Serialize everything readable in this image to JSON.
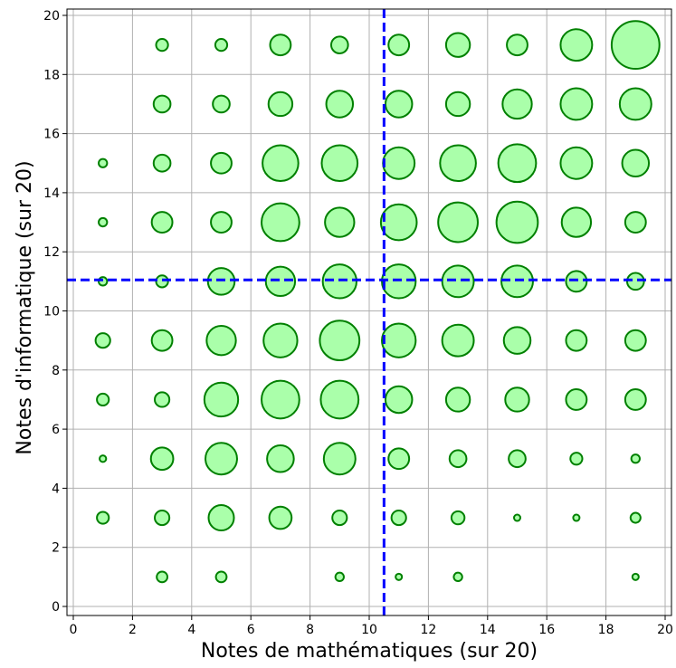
{
  "chart_data": {
    "type": "scatter",
    "variant": "bubble",
    "title": "",
    "xlabel": "Notes de mathématiques (sur 20)",
    "ylabel": "Notes d'informatique (sur 20)",
    "xlim": [
      0,
      20
    ],
    "ylim": [
      0,
      20
    ],
    "xticks": [
      "0",
      "2",
      "4",
      "6",
      "8",
      "10",
      "12",
      "14",
      "16",
      "18",
      "20"
    ],
    "yticks": [
      "0",
      "2",
      "4",
      "6",
      "8",
      "10",
      "12",
      "14",
      "16",
      "18",
      "20"
    ],
    "grid": true,
    "colors": {
      "bubble_fill": "#aaffaa",
      "bubble_edge": "#008000",
      "mean_line": "#0000ff",
      "grid": "#b0b0b0"
    },
    "mean_lines": {
      "x": 10.5,
      "y": 11.05,
      "style": "dashed"
    },
    "points": [
      {
        "x": 3,
        "y": 19,
        "count": 1
      },
      {
        "x": 5,
        "y": 19,
        "count": 1
      },
      {
        "x": 7,
        "y": 19,
        "count": 3
      },
      {
        "x": 9,
        "y": 19,
        "count": 2
      },
      {
        "x": 11,
        "y": 19,
        "count": 3
      },
      {
        "x": 13,
        "y": 19,
        "count": 4
      },
      {
        "x": 15,
        "y": 19,
        "count": 3
      },
      {
        "x": 17,
        "y": 19,
        "count": 7
      },
      {
        "x": 19,
        "y": 19,
        "count": 16
      },
      {
        "x": 3,
        "y": 17,
        "count": 2
      },
      {
        "x": 5,
        "y": 17,
        "count": 2
      },
      {
        "x": 7,
        "y": 17,
        "count": 4
      },
      {
        "x": 9,
        "y": 17,
        "count": 5
      },
      {
        "x": 11,
        "y": 17,
        "count": 5
      },
      {
        "x": 13,
        "y": 17,
        "count": 4
      },
      {
        "x": 15,
        "y": 17,
        "count": 6
      },
      {
        "x": 17,
        "y": 17,
        "count": 7
      },
      {
        "x": 19,
        "y": 17,
        "count": 7
      },
      {
        "x": 1,
        "y": 15,
        "count": 0.5
      },
      {
        "x": 3,
        "y": 15,
        "count": 2
      },
      {
        "x": 5,
        "y": 15,
        "count": 3
      },
      {
        "x": 7,
        "y": 15,
        "count": 9
      },
      {
        "x": 9,
        "y": 15,
        "count": 9
      },
      {
        "x": 11,
        "y": 15,
        "count": 7
      },
      {
        "x": 13,
        "y": 15,
        "count": 9
      },
      {
        "x": 15,
        "y": 15,
        "count": 10
      },
      {
        "x": 17,
        "y": 15,
        "count": 7
      },
      {
        "x": 19,
        "y": 15,
        "count": 5
      },
      {
        "x": 1,
        "y": 13,
        "count": 0.5
      },
      {
        "x": 3,
        "y": 13,
        "count": 3
      },
      {
        "x": 5,
        "y": 13,
        "count": 3
      },
      {
        "x": 7,
        "y": 13,
        "count": 10
      },
      {
        "x": 9,
        "y": 13,
        "count": 6
      },
      {
        "x": 11,
        "y": 13,
        "count": 9
      },
      {
        "x": 13,
        "y": 13,
        "count": 11
      },
      {
        "x": 15,
        "y": 13,
        "count": 12
      },
      {
        "x": 17,
        "y": 13,
        "count": 6
      },
      {
        "x": 19,
        "y": 13,
        "count": 3
      },
      {
        "x": 1,
        "y": 11,
        "count": 0.5
      },
      {
        "x": 3,
        "y": 11,
        "count": 1
      },
      {
        "x": 5,
        "y": 11,
        "count": 5
      },
      {
        "x": 7,
        "y": 11,
        "count": 6
      },
      {
        "x": 9,
        "y": 11,
        "count": 8
      },
      {
        "x": 11,
        "y": 11,
        "count": 8
      },
      {
        "x": 13,
        "y": 11,
        "count": 7
      },
      {
        "x": 15,
        "y": 11,
        "count": 7
      },
      {
        "x": 17,
        "y": 11,
        "count": 3
      },
      {
        "x": 19,
        "y": 11,
        "count": 2
      },
      {
        "x": 1,
        "y": 9,
        "count": 1.5
      },
      {
        "x": 3,
        "y": 9,
        "count": 3
      },
      {
        "x": 5,
        "y": 9,
        "count": 6
      },
      {
        "x": 7,
        "y": 9,
        "count": 8
      },
      {
        "x": 9,
        "y": 9,
        "count": 11
      },
      {
        "x": 11,
        "y": 9,
        "count": 8
      },
      {
        "x": 13,
        "y": 9,
        "count": 7
      },
      {
        "x": 15,
        "y": 9,
        "count": 5
      },
      {
        "x": 17,
        "y": 9,
        "count": 3
      },
      {
        "x": 19,
        "y": 9,
        "count": 3
      },
      {
        "x": 1,
        "y": 7,
        "count": 1
      },
      {
        "x": 3,
        "y": 7,
        "count": 1.5
      },
      {
        "x": 5,
        "y": 7,
        "count": 8
      },
      {
        "x": 7,
        "y": 7,
        "count": 10
      },
      {
        "x": 9,
        "y": 7,
        "count": 10
      },
      {
        "x": 11,
        "y": 7,
        "count": 5
      },
      {
        "x": 13,
        "y": 7,
        "count": 4
      },
      {
        "x": 15,
        "y": 7,
        "count": 4
      },
      {
        "x": 17,
        "y": 7,
        "count": 3
      },
      {
        "x": 19,
        "y": 7,
        "count": 3
      },
      {
        "x": 1,
        "y": 5,
        "count": 0.3
      },
      {
        "x": 3,
        "y": 5,
        "count": 3.5
      },
      {
        "x": 5,
        "y": 5,
        "count": 7
      },
      {
        "x": 7,
        "y": 5,
        "count": 5
      },
      {
        "x": 9,
        "y": 5,
        "count": 7
      },
      {
        "x": 11,
        "y": 5,
        "count": 3
      },
      {
        "x": 13,
        "y": 5,
        "count": 2
      },
      {
        "x": 15,
        "y": 5,
        "count": 2
      },
      {
        "x": 17,
        "y": 5,
        "count": 1
      },
      {
        "x": 19,
        "y": 5,
        "count": 0.5
      },
      {
        "x": 1,
        "y": 3,
        "count": 1
      },
      {
        "x": 3,
        "y": 3,
        "count": 1.5
      },
      {
        "x": 5,
        "y": 3,
        "count": 4.5
      },
      {
        "x": 7,
        "y": 3,
        "count": 3.5
      },
      {
        "x": 9,
        "y": 3,
        "count": 1.5
      },
      {
        "x": 11,
        "y": 3,
        "count": 1.5
      },
      {
        "x": 13,
        "y": 3,
        "count": 1.2
      },
      {
        "x": 15,
        "y": 3,
        "count": 0.2
      },
      {
        "x": 17,
        "y": 3,
        "count": 0.2
      },
      {
        "x": 19,
        "y": 3,
        "count": 0.7
      },
      {
        "x": 3,
        "y": 1,
        "count": 0.8
      },
      {
        "x": 5,
        "y": 1,
        "count": 0.8
      },
      {
        "x": 9,
        "y": 1,
        "count": 0.5
      },
      {
        "x": 11,
        "y": 1,
        "count": 0.25
      },
      {
        "x": 13,
        "y": 1,
        "count": 0.5
      },
      {
        "x": 19,
        "y": 1,
        "count": 0.25
      }
    ]
  }
}
